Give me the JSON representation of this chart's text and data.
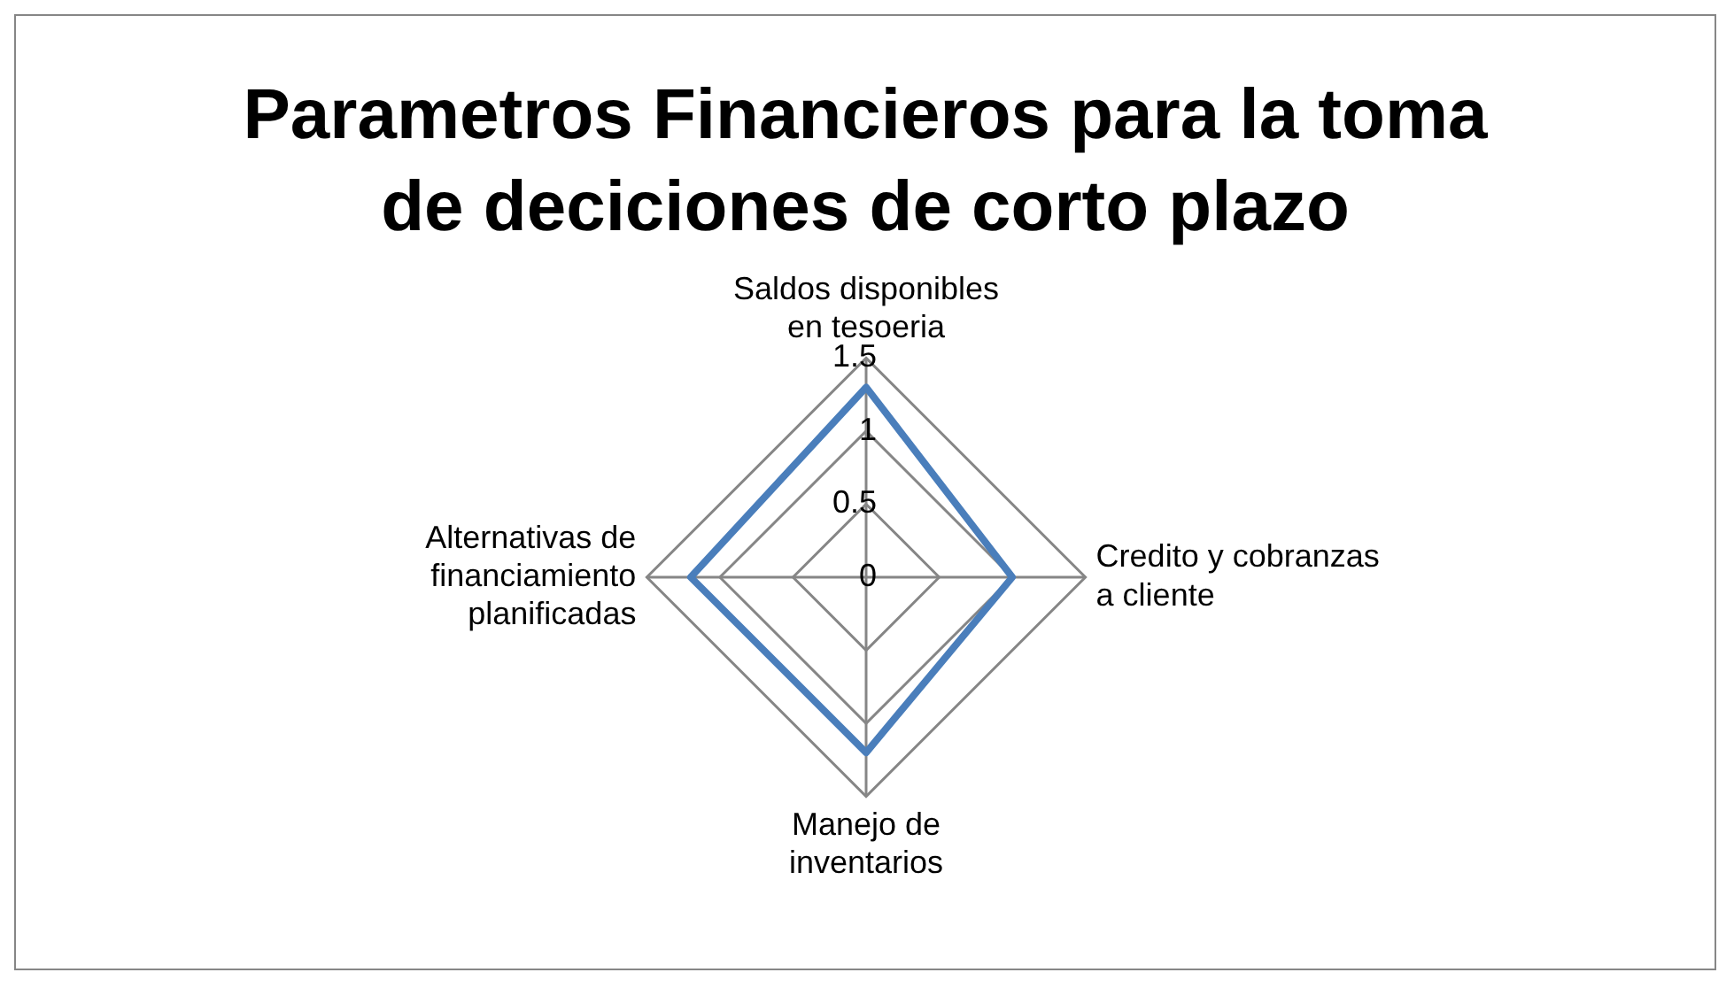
{
  "chart_data": {
    "type": "radar",
    "title": "Parametros Financieros para la toma de deciciones de corto plazo",
    "categories": [
      "Saldos disponibles en tesoeria",
      "Credito y cobranzas a cliente",
      "Manejo de inventarios",
      "Alternativas de financiamiento planificadas"
    ],
    "series": [
      {
        "color": "#4a7ebb",
        "values": [
          1.3,
          1.0,
          1.2,
          1.2
        ]
      }
    ],
    "ylim": [
      0,
      1.5
    ],
    "yticks": [
      0,
      0.5,
      1,
      1.5
    ],
    "grid": true,
    "legend": false,
    "marker": "none"
  }
}
